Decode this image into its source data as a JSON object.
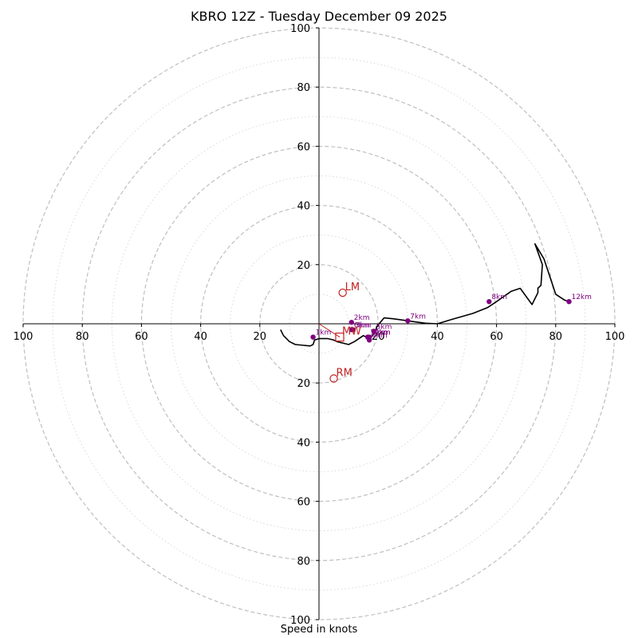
{
  "chart_data": {
    "type": "hodograph",
    "title": "KBRO 12Z - Tuesday December 09 2025",
    "xlabel": "Speed in knots",
    "axis_range": [
      -100,
      100
    ],
    "major_rings": [
      20,
      40,
      60,
      80,
      100
    ],
    "minor_rings": [
      10,
      30,
      50,
      70,
      90
    ],
    "x_ticks": [
      {
        "value": -100,
        "label": "100"
      },
      {
        "value": -80,
        "label": "80"
      },
      {
        "value": -60,
        "label": "60"
      },
      {
        "value": -40,
        "label": "40"
      },
      {
        "value": -20,
        "label": "20"
      },
      {
        "value": 20,
        "label": "20"
      },
      {
        "value": 40,
        "label": "40"
      },
      {
        "value": 60,
        "label": "60"
      },
      {
        "value": 80,
        "label": "80"
      },
      {
        "value": 100,
        "label": "100"
      }
    ],
    "y_ticks": [
      {
        "value": 100,
        "label": "100"
      },
      {
        "value": 80,
        "label": "80"
      },
      {
        "value": 60,
        "label": "60"
      },
      {
        "value": 40,
        "label": "40"
      },
      {
        "value": 20,
        "label": "20"
      },
      {
        "value": -20,
        "label": "20"
      },
      {
        "value": -40,
        "label": "40"
      },
      {
        "value": -60,
        "label": "60"
      },
      {
        "value": -80,
        "label": "80"
      },
      {
        "value": -100,
        "label": "100"
      }
    ],
    "hodograph_trace": [
      [
        -13,
        -2
      ],
      [
        -12,
        -4
      ],
      [
        -10,
        -6
      ],
      [
        -8,
        -7
      ],
      [
        -3,
        -7.5
      ],
      [
        -2,
        -7
      ],
      [
        -1.5,
        -5.5
      ],
      [
        0,
        -5
      ],
      [
        3,
        -5
      ],
      [
        5,
        -5.5
      ],
      [
        6,
        -6
      ],
      [
        8,
        -6.5
      ],
      [
        10,
        -7
      ],
      [
        12,
        -6
      ],
      [
        15,
        -4
      ],
      [
        17,
        -5
      ],
      [
        18,
        -4
      ],
      [
        19,
        -3
      ],
      [
        19.5,
        -1
      ],
      [
        22,
        2
      ],
      [
        25,
        1.7
      ],
      [
        28,
        1.3
      ],
      [
        30,
        1
      ],
      [
        36,
        0.2
      ],
      [
        40,
        0
      ],
      [
        45,
        1.5
      ],
      [
        52,
        3.5
      ],
      [
        57,
        5.5
      ],
      [
        60,
        7.5
      ],
      [
        65,
        11
      ],
      [
        68,
        12
      ],
      [
        72,
        6.5
      ],
      [
        74,
        10.5
      ],
      [
        74,
        12
      ],
      [
        75,
        13
      ],
      [
        75.5,
        20
      ],
      [
        73,
        27
      ],
      [
        76,
        22
      ],
      [
        78,
        16
      ],
      [
        80,
        10
      ],
      [
        83,
        8
      ],
      [
        84.5,
        7.5
      ]
    ],
    "height_markers": [
      {
        "label": "1km",
        "u": -2,
        "v": -4.5
      },
      {
        "label": "2km",
        "u": 11,
        "v": 0.5
      },
      {
        "label": "3km",
        "u": 11.5,
        "v": -2
      },
      {
        "label": "4km",
        "u": 17,
        "v": -5.5
      },
      {
        "label": "5km",
        "u": 18.5,
        "v": -2.5
      },
      {
        "label": "6km",
        "u": 11,
        "v": -2
      },
      {
        "label": "7km",
        "u": 30,
        "v": 1
      },
      {
        "label": "8km",
        "u": 57.5,
        "v": 7.5
      },
      {
        "label": "9km",
        "u": 17,
        "v": -4.5
      },
      {
        "label": "10km",
        "u": 16.5,
        "v": -4.5
      },
      {
        "label": "11km",
        "u": 16.5,
        "v": -4.5
      },
      {
        "label": "12km",
        "u": 84.5,
        "v": 7.5
      }
    ],
    "storm_motion": [
      {
        "label": "LM",
        "u": 8,
        "v": 10.5
      },
      {
        "label": "MW",
        "u": 7,
        "v": -4.5
      },
      {
        "label": "RM",
        "u": 5,
        "v": -18.5
      }
    ],
    "colors": {
      "trace": "#000000",
      "markers": "#800080",
      "storm_motion": "#c0211f",
      "grid_major": "#bfbfbf",
      "grid_minor": "#d9d9d9",
      "axes": "#000000"
    }
  }
}
